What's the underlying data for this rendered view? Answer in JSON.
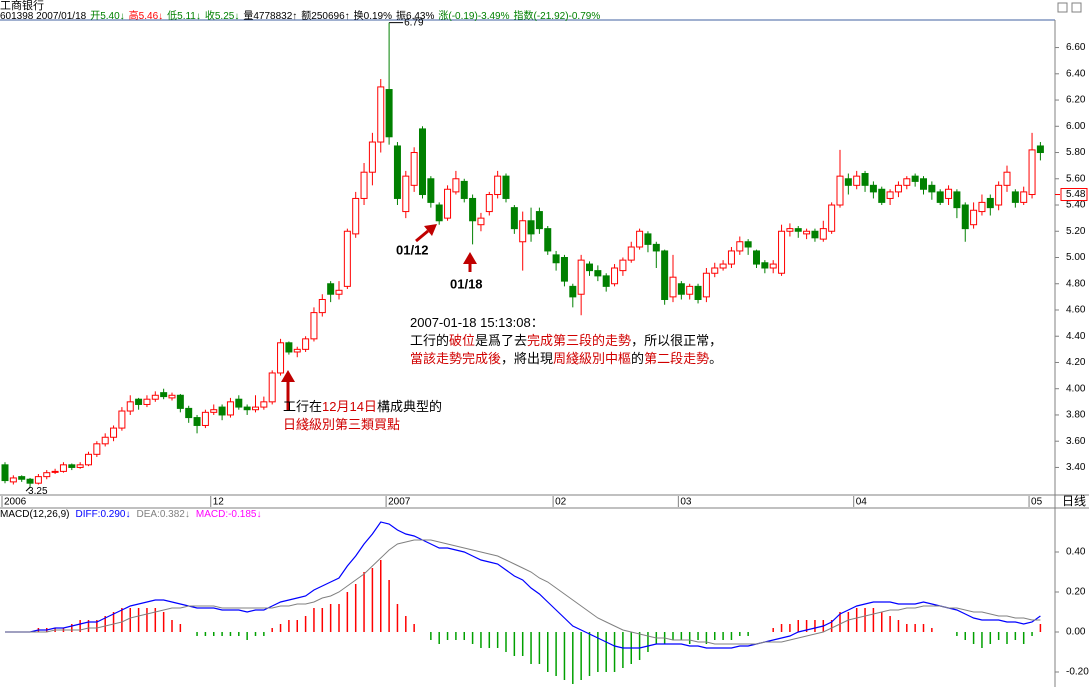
{
  "header": {
    "name": "工商银行",
    "line": [
      {
        "text": "601398 2007/01/18",
        "color": "#000000"
      },
      {
        "text": "开5.40↓",
        "color": "#008000"
      },
      {
        "text": "高5.46↓",
        "color": "#ff0000"
      },
      {
        "text": "低5.11↓",
        "color": "#008000"
      },
      {
        "text": "收5.25↓",
        "color": "#008000"
      },
      {
        "text": "量4778832↑",
        "color": "#000000"
      },
      {
        "text": "额250696↑",
        "color": "#000000"
      },
      {
        "text": "换0.19%",
        "color": "#000000"
      },
      {
        "text": "振6.43%",
        "color": "#000000"
      },
      {
        "text": "涨(-0.19)-3.49%",
        "color": "#008000"
      },
      {
        "text": "指数(-21.92)-0.79%",
        "color": "#008000"
      }
    ]
  },
  "chart_data": [
    {
      "type": "candlestick",
      "up_color": "#ff0000",
      "down_color": "#008000",
      "open": [
        3.42,
        3.29,
        3.33,
        3.31,
        3.28,
        3.33,
        3.37,
        3.37,
        3.42,
        3.4,
        3.42,
        3.5,
        3.58,
        3.63,
        3.7,
        3.83,
        3.92,
        3.88,
        3.92,
        3.97,
        3.93,
        3.95,
        3.85,
        3.78,
        3.72,
        3.82,
        3.86,
        3.8,
        3.92,
        3.86,
        3.84,
        3.86,
        3.9,
        4.12,
        4.35,
        4.28,
        4.3,
        4.38,
        4.58,
        4.8,
        4.72,
        4.78,
        5.18,
        5.45,
        5.65,
        5.88,
        6.28,
        5.85,
        5.35,
        5.55,
        5.98,
        5.6,
        5.4,
        5.3,
        5.5,
        5.58,
        5.45,
        5.25,
        5.35,
        5.48,
        5.62,
        5.38,
        5.12,
        5.28,
        5.35,
        5.22,
        5.02,
        5.0,
        4.78,
        4.72,
        4.95,
        4.9,
        4.86,
        4.8,
        4.9,
        4.98,
        5.08,
        5.18,
        5.1,
        5.05,
        4.7,
        4.8,
        4.72,
        4.78,
        4.7,
        4.88,
        4.92,
        4.95,
        5.05,
        5.12,
        5.05,
        4.96,
        4.92,
        4.88,
        5.2,
        5.22,
        5.18,
        5.2,
        5.14,
        5.2,
        5.4,
        5.6,
        5.55,
        5.64,
        5.55,
        5.52,
        5.45,
        5.5,
        5.55,
        5.62,
        5.6,
        5.55,
        5.5,
        5.45,
        5.5,
        5.4,
        5.25,
        5.35,
        5.45,
        5.4,
        5.55,
        5.5,
        5.42,
        5.48,
        5.85
      ],
      "high": [
        3.44,
        3.34,
        3.34,
        3.32,
        3.35,
        3.38,
        3.39,
        3.44,
        3.43,
        3.44,
        3.52,
        3.6,
        3.66,
        3.72,
        3.86,
        3.95,
        3.93,
        3.95,
        3.98,
        4.0,
        3.97,
        3.96,
        3.87,
        3.8,
        3.84,
        3.88,
        3.88,
        3.93,
        3.95,
        3.88,
        3.95,
        3.94,
        4.14,
        4.38,
        4.36,
        4.32,
        4.4,
        4.62,
        4.72,
        4.82,
        4.82,
        5.22,
        5.5,
        5.72,
        5.95,
        6.36,
        6.79,
        5.88,
        5.66,
        5.84,
        6.0,
        5.62,
        5.42,
        5.55,
        5.66,
        5.6,
        5.48,
        5.34,
        5.5,
        5.66,
        5.64,
        5.4,
        5.35,
        5.38,
        5.38,
        5.24,
        5.05,
        5.02,
        4.8,
        5.02,
        4.97,
        4.94,
        4.88,
        4.95,
        5.0,
        5.12,
        5.22,
        5.2,
        5.12,
        5.06,
        5.02,
        4.82,
        4.8,
        4.8,
        4.92,
        4.96,
        4.98,
        5.08,
        5.16,
        5.14,
        5.06,
        4.98,
        4.98,
        5.25,
        5.26,
        5.24,
        5.22,
        5.22,
        5.28,
        5.42,
        5.82,
        5.64,
        5.66,
        5.66,
        5.58,
        5.54,
        5.52,
        5.58,
        5.62,
        5.64,
        5.62,
        5.58,
        5.52,
        5.55,
        5.52,
        5.42,
        5.42,
        5.48,
        5.48,
        5.58,
        5.7,
        5.52,
        5.54,
        5.95,
        5.88
      ],
      "low": [
        3.28,
        3.27,
        3.29,
        3.25,
        3.27,
        3.31,
        3.35,
        3.36,
        3.38,
        3.39,
        3.41,
        3.48,
        3.56,
        3.6,
        3.68,
        3.8,
        3.84,
        3.86,
        3.9,
        3.92,
        3.91,
        3.82,
        3.74,
        3.66,
        3.7,
        3.8,
        3.76,
        3.78,
        3.84,
        3.8,
        3.82,
        3.84,
        3.88,
        4.1,
        4.26,
        4.24,
        4.28,
        4.36,
        4.55,
        4.66,
        4.68,
        4.76,
        5.15,
        5.4,
        5.55,
        5.8,
        5.86,
        5.4,
        5.3,
        5.5,
        5.45,
        5.38,
        5.25,
        5.28,
        5.48,
        5.42,
        5.1,
        5.2,
        5.32,
        5.45,
        5.42,
        5.18,
        4.9,
        5.12,
        5.18,
        5.02,
        4.9,
        4.78,
        4.62,
        4.56,
        4.86,
        4.82,
        4.74,
        4.78,
        4.86,
        4.96,
        5.06,
        5.04,
        4.92,
        4.64,
        4.66,
        4.68,
        4.68,
        4.65,
        4.66,
        4.85,
        4.9,
        4.92,
        5.02,
        5.02,
        4.92,
        4.88,
        4.88,
        4.86,
        5.16,
        5.15,
        5.14,
        5.12,
        5.12,
        5.18,
        5.38,
        5.48,
        5.52,
        5.5,
        5.45,
        5.4,
        5.4,
        5.46,
        5.52,
        5.54,
        5.48,
        5.44,
        5.4,
        5.4,
        5.3,
        5.12,
        5.22,
        5.32,
        5.32,
        5.36,
        5.5,
        5.38,
        5.4,
        5.45,
        5.74
      ],
      "close": [
        3.3,
        3.32,
        3.31,
        3.28,
        3.33,
        3.36,
        3.37,
        3.42,
        3.4,
        3.42,
        3.5,
        3.58,
        3.63,
        3.7,
        3.83,
        3.9,
        3.88,
        3.92,
        3.95,
        3.94,
        3.95,
        3.85,
        3.78,
        3.72,
        3.82,
        3.84,
        3.8,
        3.9,
        3.86,
        3.84,
        3.86,
        3.9,
        4.12,
        4.35,
        4.28,
        4.3,
        4.38,
        4.58,
        4.68,
        4.72,
        4.75,
        5.2,
        5.45,
        5.65,
        5.88,
        6.3,
        5.92,
        5.45,
        5.62,
        5.8,
        5.48,
        5.42,
        5.28,
        5.52,
        5.6,
        5.45,
        5.28,
        5.3,
        5.48,
        5.62,
        5.45,
        5.22,
        5.28,
        5.18,
        5.22,
        5.05,
        4.96,
        4.82,
        4.7,
        4.98,
        4.9,
        4.86,
        4.78,
        4.92,
        4.98,
        5.08,
        5.2,
        5.1,
        5.05,
        4.68,
        4.85,
        4.72,
        4.78,
        4.68,
        4.88,
        4.92,
        4.95,
        5.05,
        5.12,
        5.08,
        4.95,
        4.92,
        4.95,
        5.2,
        5.22,
        5.2,
        5.2,
        5.15,
        5.22,
        5.4,
        5.62,
        5.55,
        5.62,
        5.55,
        5.5,
        5.42,
        5.5,
        5.55,
        5.6,
        5.58,
        5.52,
        5.5,
        5.42,
        5.52,
        5.38,
        5.22,
        5.36,
        5.42,
        5.38,
        5.55,
        5.65,
        5.42,
        5.5,
        5.82,
        5.8
      ],
      "ylim": [
        3.19,
        6.81
      ],
      "yticks": [
        {
          "value": 3.4,
          "label": "3.40"
        },
        {
          "value": 3.6,
          "label": "3.60"
        },
        {
          "value": 3.8,
          "label": "3.80"
        },
        {
          "value": 4.0,
          "label": "4.00"
        },
        {
          "value": 4.2,
          "label": "4.20"
        },
        {
          "value": 4.4,
          "label": "4.40"
        },
        {
          "value": 4.6,
          "label": "4.60"
        },
        {
          "value": 4.8,
          "label": "4.80"
        },
        {
          "value": 5.0,
          "label": "5.00"
        },
        {
          "value": 5.2,
          "label": "5.20"
        },
        {
          "value": 5.4,
          "label": "5.40"
        },
        {
          "value": 5.6,
          "label": "5.60"
        },
        {
          "value": 5.8,
          "label": "5.80"
        },
        {
          "value": 6.0,
          "label": "6.00"
        },
        {
          "value": 6.2,
          "label": "6.20"
        },
        {
          "value": 6.4,
          "label": "6.40"
        },
        {
          "value": 6.6,
          "label": "6.60"
        }
      ],
      "last_price": 5.48,
      "max_label": 6.79,
      "min_label": 3.25,
      "date_ticks": [
        {
          "value": 0,
          "label": "2006"
        },
        {
          "value": 25,
          "label": "12"
        },
        {
          "value": 46,
          "label": "2007"
        },
        {
          "value": 66,
          "label": "02"
        },
        {
          "value": 81,
          "label": "03"
        },
        {
          "value": 102,
          "label": "04"
        },
        {
          "value": 123,
          "label": "05"
        }
      ],
      "period_label": "日线",
      "annotations": {
        "arrow_labels": [
          "01/12",
          "01/18"
        ],
        "buy_point": [
          [
            {
              "text": "工行在"
            },
            {
              "text": "12月14日",
              "color": "#d00000"
            },
            {
              "text": "構成典型的"
            }
          ],
          [
            {
              "text": "日綫級別第三類買點",
              "color": "#d00000"
            }
          ]
        ],
        "comment": [
          [
            {
              "text": "2007-01-18 15:13:08："
            }
          ],
          [
            {
              "text": "工行的"
            },
            {
              "text": "破位",
              "color": "#d00000"
            },
            {
              "text": "是爲了去"
            },
            {
              "text": "完成第三段的走勢",
              "color": "#d00000"
            },
            {
              "text": "，所以很正常，"
            }
          ],
          [
            {
              "text": "當該走勢完成後",
              "color": "#d00000"
            },
            {
              "text": "，將出現"
            },
            {
              "text": "周綫級別中樞",
              "color": "#d00000"
            },
            {
              "text": "的"
            },
            {
              "text": "第二段走勢",
              "color": "#d00000"
            },
            {
              "text": "。"
            }
          ]
        ]
      }
    },
    {
      "type": "macd",
      "title": "MACD(12,26,9)",
      "bar_up_color": "#ff0000",
      "bar_down_color": "#00a000",
      "ylim": [
        -0.275,
        0.62
      ],
      "yticks": [
        {
          "value": -0.2,
          "label": "-0.20"
        },
        {
          "value": 0,
          "label": "0.00"
        },
        {
          "value": 0.2,
          "label": "0.20"
        },
        {
          "value": 0.4,
          "label": "0.40"
        }
      ],
      "series": [
        {
          "name": "DIFF:0.290↓",
          "color": "#0000ff",
          "values": [
            0,
            0,
            0,
            0,
            0.01,
            0.01,
            0.02,
            0.02,
            0.03,
            0.04,
            0.05,
            0.05,
            0.07,
            0.09,
            0.11,
            0.13,
            0.14,
            0.15,
            0.16,
            0.16,
            0.15,
            0.14,
            0.13,
            0.12,
            0.12,
            0.12,
            0.11,
            0.11,
            0.11,
            0.1,
            0.11,
            0.11,
            0.13,
            0.15,
            0.16,
            0.17,
            0.18,
            0.21,
            0.23,
            0.25,
            0.27,
            0.33,
            0.38,
            0.44,
            0.49,
            0.55,
            0.54,
            0.51,
            0.49,
            0.48,
            0.46,
            0.44,
            0.42,
            0.42,
            0.41,
            0.4,
            0.38,
            0.36,
            0.35,
            0.34,
            0.31,
            0.28,
            0.26,
            0.22,
            0.19,
            0.15,
            0.11,
            0.07,
            0.03,
            0.01,
            -0.01,
            -0.03,
            -0.05,
            -0.07,
            -0.08,
            -0.08,
            -0.08,
            -0.07,
            -0.06,
            -0.06,
            -0.06,
            -0.06,
            -0.07,
            -0.07,
            -0.08,
            -0.08,
            -0.08,
            -0.08,
            -0.07,
            -0.07,
            -0.06,
            -0.05,
            -0.04,
            -0.03,
            -0.02,
            0,
            0.01,
            0.02,
            0.03,
            0.05,
            0.09,
            0.11,
            0.13,
            0.14,
            0.15,
            0.15,
            0.15,
            0.14,
            0.14,
            0.14,
            0.15,
            0.14,
            0.13,
            0.12,
            0.11,
            0.09,
            0.07,
            0.06,
            0.06,
            0.06,
            0.05,
            0.05,
            0.04,
            0.05,
            0.08
          ]
        },
        {
          "name": "DEA:0.382↓",
          "color": "#808080",
          "values": [
            0,
            0,
            0,
            0,
            0,
            0,
            0.01,
            0.01,
            0.01,
            0.01,
            0.02,
            0.02,
            0.03,
            0.04,
            0.05,
            0.07,
            0.08,
            0.09,
            0.1,
            0.11,
            0.12,
            0.12,
            0.13,
            0.13,
            0.13,
            0.13,
            0.12,
            0.12,
            0.12,
            0.12,
            0.12,
            0.12,
            0.12,
            0.13,
            0.13,
            0.14,
            0.14,
            0.15,
            0.17,
            0.18,
            0.2,
            0.23,
            0.26,
            0.29,
            0.33,
            0.37,
            0.41,
            0.44,
            0.45,
            0.46,
            0.46,
            0.46,
            0.45,
            0.44,
            0.43,
            0.42,
            0.41,
            0.4,
            0.39,
            0.38,
            0.36,
            0.34,
            0.32,
            0.3,
            0.27,
            0.25,
            0.22,
            0.19,
            0.16,
            0.13,
            0.1,
            0.07,
            0.05,
            0.03,
            0.01,
            0,
            -0.01,
            -0.02,
            -0.03,
            -0.03,
            -0.04,
            -0.04,
            -0.04,
            -0.05,
            -0.05,
            -0.06,
            -0.06,
            -0.06,
            -0.06,
            -0.06,
            -0.06,
            -0.05,
            -0.05,
            -0.05,
            -0.04,
            -0.03,
            -0.02,
            -0.01,
            0,
            0.02,
            0.04,
            0.06,
            0.07,
            0.08,
            0.09,
            0.1,
            0.11,
            0.11,
            0.12,
            0.12,
            0.13,
            0.13,
            0.13,
            0.12,
            0.12,
            0.11,
            0.1,
            0.1,
            0.09,
            0.08,
            0.08,
            0.07,
            0.07,
            0.06,
            0.06
          ]
        },
        {
          "name": "MACD:-0.185↓",
          "color": "#ff00ff",
          "values": [
            0,
            0,
            0,
            0,
            0.02,
            0.02,
            0.02,
            0.02,
            0.04,
            0.06,
            0.06,
            0.06,
            0.08,
            0.1,
            0.12,
            0.12,
            0.12,
            0.12,
            0.12,
            0.1,
            0.06,
            0.04,
            0,
            -0.02,
            -0.02,
            -0.02,
            -0.02,
            -0.02,
            -0.02,
            -0.04,
            -0.02,
            -0.02,
            0.02,
            0.04,
            0.06,
            0.06,
            0.08,
            0.12,
            0.12,
            0.14,
            0.14,
            0.2,
            0.24,
            0.3,
            0.32,
            0.36,
            0.26,
            0.14,
            0.08,
            0.04,
            0,
            -0.04,
            -0.06,
            -0.04,
            -0.04,
            -0.04,
            -0.06,
            -0.08,
            -0.08,
            -0.08,
            -0.1,
            -0.12,
            -0.12,
            -0.16,
            -0.16,
            -0.2,
            -0.22,
            -0.24,
            -0.26,
            -0.24,
            -0.22,
            -0.2,
            -0.2,
            -0.2,
            -0.18,
            -0.16,
            -0.14,
            -0.1,
            -0.06,
            -0.06,
            -0.04,
            -0.04,
            -0.06,
            -0.04,
            -0.06,
            -0.04,
            -0.04,
            -0.04,
            -0.02,
            -0.02,
            0,
            0,
            0.02,
            0.04,
            0.04,
            0.06,
            0.06,
            0.06,
            0.06,
            0.06,
            0.1,
            0.1,
            0.12,
            0.12,
            0.12,
            0.1,
            0.08,
            0.06,
            0.04,
            0.04,
            0.04,
            0.02,
            0,
            0,
            -0.02,
            -0.04,
            -0.06,
            -0.08,
            -0.06,
            -0.04,
            -0.06,
            -0.04,
            -0.06,
            -0.02,
            0.04
          ]
        }
      ]
    }
  ]
}
